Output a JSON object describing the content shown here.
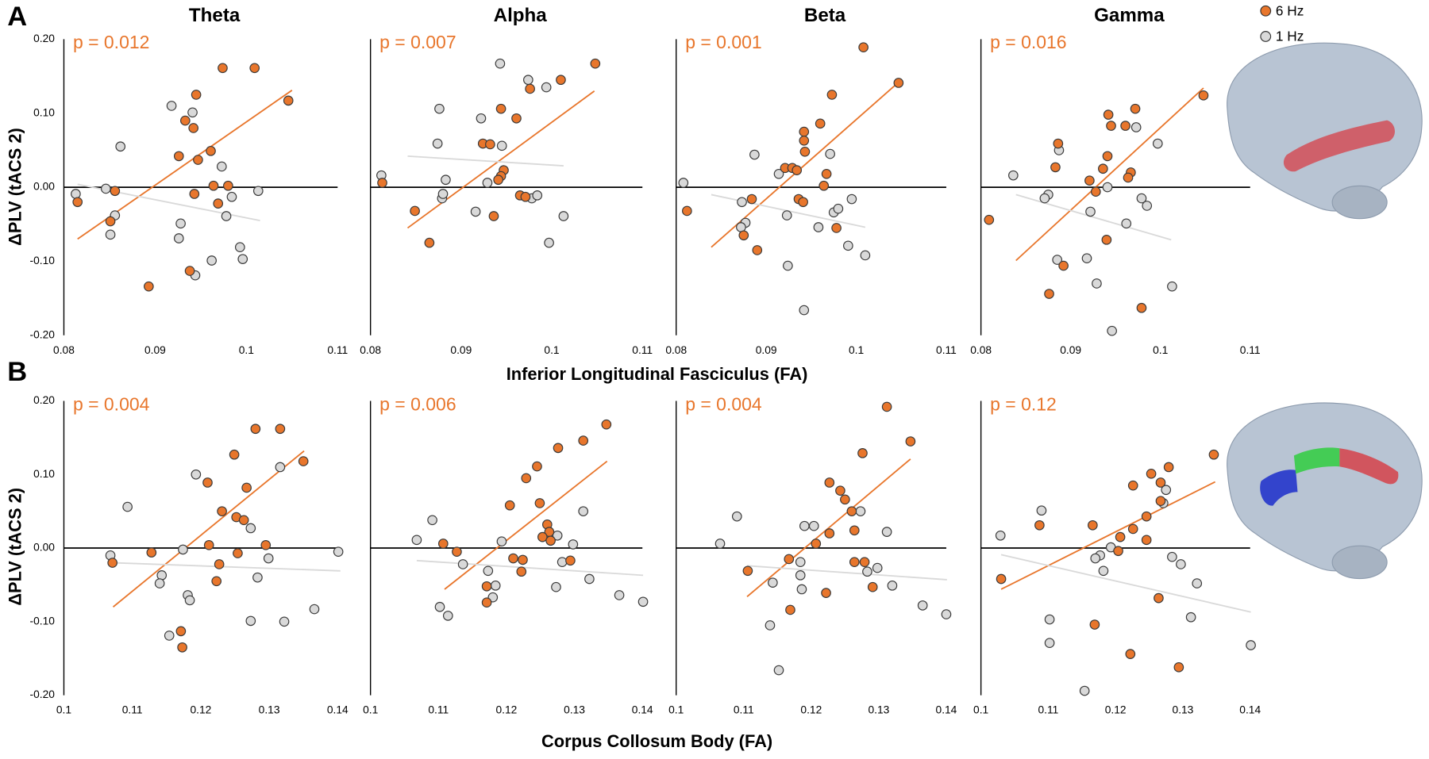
{
  "figure": {
    "rows": [
      {
        "label": "A",
        "ylabel": "ΔPLV (tACS 2)",
        "xlabel": "Inferior Longitudinal Fasciculus (FA)"
      },
      {
        "label": "B",
        "ylabel": "ΔPLV (tACS 2)",
        "xlabel": "Corpus Collosum Body (FA)"
      }
    ]
  },
  "chart_data": [
    {
      "type": "scatter",
      "title": "Theta",
      "annotation": "p = 0.012",
      "xlim": [
        0.08,
        0.11
      ],
      "xticks": [
        0.08,
        0.09,
        0.1,
        0.11
      ],
      "ylim": [
        -0.2,
        0.2
      ],
      "yticks": [
        {
          "value": 0.2,
          "label": "0.20"
        },
        {
          "value": 0.1,
          "label": "0.10"
        },
        {
          "value": 0,
          "label": "0.00"
        },
        {
          "value": -0.1,
          "label": "-0.10"
        },
        {
          "value": -0.2,
          "label": "-0.20"
        }
      ],
      "hline": 0,
      "series": [
        {
          "name": "6 Hz",
          "color": "#e8762c",
          "x": [
            0.0974,
            0.1009,
            0.1046,
            0.0945,
            0.0933,
            0.0942,
            0.0926,
            0.0947,
            0.0961,
            0.0964,
            0.098,
            0.0969,
            0.0943,
            0.0851,
            0.0815,
            0.0856,
            0.0938,
            0.0893
          ],
          "values": [
            0.161,
            0.161,
            0.117,
            0.125,
            0.09,
            0.08,
            0.042,
            0.037,
            0.049,
            0.002,
            0.002,
            -0.022,
            -0.009,
            -0.046,
            -0.02,
            -0.005,
            -0.113,
            -0.134
          ],
          "trend_x": [
            0.0815,
            0.105
          ],
          "trend_y": [
            -0.07,
            0.131
          ]
        },
        {
          "name": "1 Hz",
          "color": "#d9d9d9",
          "x": [
            0.0813,
            0.0846,
            0.0862,
            0.0918,
            0.0941,
            0.0973,
            0.0978,
            0.0984,
            0.1013,
            0.0993,
            0.0996,
            0.0962,
            0.0944,
            0.0926,
            0.0928,
            0.0851,
            0.0856
          ],
          "values": [
            -0.009,
            -0.002,
            0.055,
            0.11,
            0.101,
            0.028,
            -0.039,
            -0.013,
            -0.005,
            -0.081,
            -0.097,
            -0.099,
            -0.119,
            -0.069,
            -0.049,
            -0.064,
            -0.038
          ],
          "trend_x": [
            0.0815,
            0.1015
          ],
          "trend_y": [
            0.004,
            -0.045
          ]
        }
      ]
    },
    {
      "type": "scatter",
      "title": "Alpha",
      "annotation": "p = 0.007",
      "xlim": [
        0.08,
        0.11
      ],
      "xticks": [
        0.08,
        0.09,
        0.1,
        0.11
      ],
      "ylim": [
        -0.2,
        0.2
      ],
      "hline": 0,
      "series": [
        {
          "color": "#e8762c",
          "x": [
            0.1048,
            0.101,
            0.0976,
            0.0944,
            0.0961,
            0.0924,
            0.0932,
            0.0947,
            0.0944,
            0.0941,
            0.0936,
            0.0965,
            0.0971,
            0.0813,
            0.0849,
            0.0865
          ],
          "values": [
            0.167,
            0.145,
            0.133,
            0.106,
            0.093,
            0.059,
            0.058,
            0.023,
            0.015,
            0.01,
            -0.039,
            -0.011,
            -0.013,
            0.006,
            -0.032,
            -0.075
          ],
          "trend_x": [
            0.0841,
            0.1047
          ],
          "trend_y": [
            -0.055,
            0.13
          ]
        },
        {
          "color": "#d9d9d9",
          "x": [
            0.0943,
            0.0974,
            0.0994,
            0.0876,
            0.0874,
            0.0922,
            0.0945,
            0.0812,
            0.0883,
            0.0879,
            0.0916,
            0.0929,
            0.0978,
            0.0984,
            0.1013,
            0.0997,
            0.088
          ],
          "values": [
            0.167,
            0.145,
            0.135,
            0.106,
            0.059,
            0.093,
            0.056,
            0.016,
            0.01,
            -0.015,
            -0.033,
            0.006,
            -0.015,
            -0.011,
            -0.039,
            -0.075,
            -0.009
          ],
          "trend_x": [
            0.0841,
            0.1013
          ],
          "trend_y": [
            0.042,
            0.029
          ]
        }
      ]
    },
    {
      "type": "scatter",
      "title": "Beta",
      "annotation": "p = 0.001",
      "xlim": [
        0.08,
        0.11
      ],
      "xticks": [
        0.08,
        0.09,
        0.1,
        0.11
      ],
      "ylim": [
        -0.2,
        0.2
      ],
      "hline": 0,
      "series": [
        {
          "color": "#e8762c",
          "x": [
            0.1008,
            0.1047,
            0.0973,
            0.096,
            0.0942,
            0.0942,
            0.0943,
            0.0921,
            0.0929,
            0.0934,
            0.0967,
            0.0964,
            0.0936,
            0.0941,
            0.0978,
            0.0884,
            0.0812,
            0.0875,
            0.089
          ],
          "values": [
            0.189,
            0.141,
            0.125,
            0.086,
            0.075,
            0.063,
            0.048,
            0.026,
            0.026,
            0.023,
            0.018,
            0.002,
            -0.016,
            -0.02,
            -0.055,
            -0.016,
            -0.032,
            -0.065,
            -0.085
          ],
          "trend_x": [
            0.0839,
            0.105
          ],
          "trend_y": [
            -0.081,
            0.145
          ]
        },
        {
          "color": "#d9d9d9",
          "x": [
            0.0971,
            0.0887,
            0.0914,
            0.0808,
            0.0873,
            0.0923,
            0.0877,
            0.0872,
            0.0958,
            0.0975,
            0.098,
            0.0995,
            0.0991,
            0.101,
            0.0924,
            0.0942
          ],
          "values": [
            0.045,
            0.044,
            0.018,
            0.006,
            -0.02,
            -0.038,
            -0.048,
            -0.054,
            -0.054,
            -0.034,
            -0.029,
            -0.016,
            -0.079,
            -0.092,
            -0.106,
            -0.166
          ],
          "trend_x": [
            0.0839,
            0.101
          ],
          "trend_y": [
            -0.01,
            -0.054
          ]
        }
      ]
    },
    {
      "type": "scatter",
      "title": "Gamma",
      "annotation": "p = 0.016",
      "xlim": [
        0.08,
        0.11
      ],
      "xticks": [
        0.08,
        0.09,
        0.1,
        0.11
      ],
      "ylim": [
        -0.2,
        0.2
      ],
      "hline": 0,
      "series": [
        {
          "color": "#e8762c",
          "x": [
            0.1048,
            0.0972,
            0.0942,
            0.0945,
            0.0961,
            0.0886,
            0.0941,
            0.0936,
            0.0883,
            0.0967,
            0.0964,
            0.0921,
            0.0928,
            0.0809,
            0.094,
            0.0892,
            0.0876,
            0.0979
          ],
          "values": [
            0.124,
            0.106,
            0.098,
            0.083,
            0.083,
            0.059,
            0.042,
            0.025,
            0.027,
            0.02,
            0.013,
            0.009,
            -0.006,
            -0.044,
            -0.071,
            -0.106,
            -0.144,
            -0.163
          ],
          "trend_x": [
            0.0839,
            0.1048
          ],
          "trend_y": [
            -0.099,
            0.134
          ]
        },
        {
          "color": "#d9d9d9",
          "x": [
            0.0973,
            0.0997,
            0.0887,
            0.0836,
            0.0875,
            0.0871,
            0.0941,
            0.0979,
            0.0985,
            0.0922,
            0.0962,
            0.0885,
            0.0918,
            0.0929,
            0.1013,
            0.0946
          ],
          "values": [
            0.081,
            0.059,
            0.05,
            0.016,
            -0.01,
            -0.015,
            0.0,
            -0.015,
            -0.025,
            -0.033,
            -0.049,
            -0.098,
            -0.096,
            -0.13,
            -0.134,
            -0.194
          ],
          "trend_x": [
            0.0839,
            0.1012
          ],
          "trend_y": [
            -0.01,
            -0.071
          ]
        }
      ]
    },
    {
      "type": "scatter",
      "annotation": "p = 0.004",
      "xlim": [
        0.1,
        0.14
      ],
      "xticks": [
        0.1,
        0.11,
        0.12,
        0.13,
        0.14
      ],
      "ylim": [
        -0.2,
        0.2
      ],
      "yticks": [
        {
          "value": 0.2,
          "label": "0.20"
        },
        {
          "value": 0.1,
          "label": "0.10"
        },
        {
          "value": 0,
          "label": "0.00"
        },
        {
          "value": -0.1,
          "label": "-0.10"
        },
        {
          "value": -0.2,
          "label": "-0.20"
        }
      ],
      "hline": 0,
      "series": [
        {
          "color": "#e8762c",
          "x": [
            0.128,
            0.1316,
            0.135,
            0.1249,
            0.121,
            0.1267,
            0.1231,
            0.1252,
            0.1263,
            0.1295,
            0.1212,
            0.1227,
            0.1254,
            0.1223,
            0.1128,
            0.1071,
            0.1171,
            0.1173
          ],
          "values": [
            0.162,
            0.162,
            0.118,
            0.127,
            0.089,
            0.082,
            0.05,
            0.042,
            0.038,
            0.004,
            0.004,
            -0.022,
            -0.007,
            -0.045,
            -0.006,
            -0.02,
            -0.113,
            -0.135
          ],
          "trend_x": [
            0.1072,
            0.1351
          ],
          "trend_y": [
            -0.08,
            0.132
          ]
        },
        {
          "color": "#d9d9d9",
          "x": [
            0.1093,
            0.1193,
            0.1316,
            0.1273,
            0.1174,
            0.1299,
            0.1068,
            0.1143,
            0.114,
            0.1181,
            0.1184,
            0.1283,
            0.1273,
            0.1322,
            0.1366,
            0.1401,
            0.1154
          ],
          "values": [
            0.056,
            0.1,
            0.11,
            0.027,
            -0.002,
            -0.014,
            -0.01,
            -0.037,
            -0.048,
            -0.064,
            -0.071,
            -0.04,
            -0.099,
            -0.1,
            -0.083,
            -0.005,
            -0.119
          ],
          "trend_x": [
            0.1072,
            0.1404
          ],
          "trend_y": [
            -0.02,
            -0.031
          ]
        }
      ]
    },
    {
      "type": "scatter",
      "annotation": "p = 0.006",
      "xlim": [
        0.1,
        0.14
      ],
      "xticks": [
        0.1,
        0.11,
        0.12,
        0.13,
        0.14
      ],
      "ylim": [
        -0.2,
        0.2
      ],
      "hline": 0,
      "series": [
        {
          "color": "#e8762c",
          "x": [
            0.1347,
            0.1313,
            0.1276,
            0.1245,
            0.1229,
            0.1249,
            0.1205,
            0.126,
            0.1263,
            0.1253,
            0.1265,
            0.1294,
            0.121,
            0.1224,
            0.1222,
            0.1107,
            0.1127,
            0.1171,
            0.1171
          ],
          "values": [
            0.168,
            0.146,
            0.136,
            0.111,
            0.095,
            0.061,
            0.058,
            0.032,
            0.022,
            0.015,
            0.01,
            -0.017,
            -0.014,
            -0.016,
            -0.032,
            0.006,
            -0.005,
            -0.052,
            -0.074
          ],
          "trend_x": [
            0.1109,
            0.1348
          ],
          "trend_y": [
            -0.056,
            0.118
          ]
        },
        {
          "color": "#d9d9d9",
          "x": [
            0.1313,
            0.1091,
            0.1068,
            0.1193,
            0.1298,
            0.1275,
            0.1282,
            0.1173,
            0.1184,
            0.1136,
            0.1273,
            0.1322,
            0.1366,
            0.1401,
            0.1102,
            0.1114,
            0.118
          ],
          "values": [
            0.05,
            0.038,
            0.011,
            0.009,
            0.005,
            0.017,
            -0.019,
            -0.031,
            -0.051,
            -0.022,
            -0.053,
            -0.042,
            -0.064,
            -0.073,
            -0.08,
            -0.092,
            -0.067
          ],
          "trend_x": [
            0.1068,
            0.1401
          ],
          "trend_y": [
            -0.017,
            -0.037
          ]
        }
      ]
    },
    {
      "type": "scatter",
      "annotation": "p = 0.004",
      "xlim": [
        0.1,
        0.14
      ],
      "xticks": [
        0.1,
        0.11,
        0.12,
        0.13,
        0.14
      ],
      "ylim": [
        -0.2,
        0.2
      ],
      "hline": 0,
      "series": [
        {
          "color": "#e8762c",
          "x": [
            0.1312,
            0.1347,
            0.1276,
            0.1227,
            0.1243,
            0.125,
            0.126,
            0.1227,
            0.1207,
            0.1264,
            0.1264,
            0.1279,
            0.1291,
            0.1222,
            0.1167,
            0.1106,
            0.1169
          ],
          "values": [
            0.192,
            0.145,
            0.129,
            0.089,
            0.078,
            0.066,
            0.05,
            0.02,
            0.006,
            0.024,
            -0.019,
            -0.019,
            -0.053,
            -0.061,
            -0.015,
            -0.031,
            -0.084
          ],
          "trend_x": [
            0.1105,
            0.1347
          ],
          "trend_y": [
            -0.066,
            0.121
          ]
        },
        {
          "color": "#d9d9d9",
          "x": [
            0.109,
            0.1065,
            0.119,
            0.1204,
            0.1273,
            0.1312,
            0.1184,
            0.1184,
            0.1143,
            0.1186,
            0.1283,
            0.1298,
            0.132,
            0.1365,
            0.14,
            0.1139,
            0.1152
          ],
          "values": [
            0.043,
            0.006,
            0.03,
            0.03,
            0.05,
            0.022,
            -0.019,
            -0.037,
            -0.047,
            -0.056,
            -0.032,
            -0.027,
            -0.051,
            -0.078,
            -0.09,
            -0.105,
            -0.166
          ],
          "trend_x": [
            0.1105,
            0.1401
          ],
          "trend_y": [
            -0.024,
            -0.043
          ]
        }
      ]
    },
    {
      "type": "scatter",
      "annotation": "p = 0.12",
      "xlim": [
        0.1,
        0.14
      ],
      "xticks": [
        0.1,
        0.11,
        0.12,
        0.13,
        0.14
      ],
      "ylim": [
        -0.2,
        0.2
      ],
      "hline": 0,
      "series": [
        {
          "color": "#e8762c",
          "x": [
            0.1346,
            0.1279,
            0.1253,
            0.1267,
            0.1226,
            0.1267,
            0.1246,
            0.1226,
            0.1207,
            0.1166,
            0.1087,
            0.1204,
            0.1246,
            0.103,
            0.1264,
            0.1169,
            0.1222,
            0.1294
          ],
          "values": [
            0.127,
            0.11,
            0.101,
            0.089,
            0.085,
            0.064,
            0.043,
            0.026,
            0.015,
            0.031,
            0.031,
            -0.004,
            0.011,
            -0.042,
            -0.068,
            -0.104,
            -0.144,
            -0.162
          ],
          "trend_x": [
            0.103,
            0.1348
          ],
          "trend_y": [
            -0.056,
            0.09
          ]
        },
        {
          "color": "#d9d9d9",
          "x": [
            0.1271,
            0.1275,
            0.109,
            0.1029,
            0.1193,
            0.1177,
            0.117,
            0.1182,
            0.1284,
            0.1297,
            0.1321,
            0.1102,
            0.1312,
            0.1102,
            0.1401,
            0.1154
          ],
          "values": [
            0.061,
            0.079,
            0.051,
            0.017,
            0.001,
            -0.01,
            -0.014,
            -0.031,
            -0.012,
            -0.022,
            -0.048,
            -0.097,
            -0.094,
            -0.129,
            -0.132,
            -0.194
          ],
          "trend_x": [
            0.103,
            0.1401
          ],
          "trend_y": [
            -0.009,
            -0.087
          ]
        }
      ]
    }
  ]
}
